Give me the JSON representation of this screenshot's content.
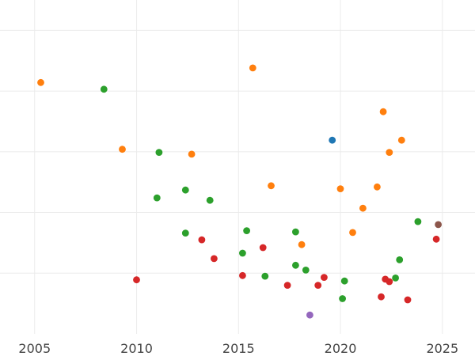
{
  "chart_data": {
    "type": "scatter",
    "title": "",
    "xlabel": "",
    "ylabel": "",
    "xlim": [
      2003.3,
      2026.6
    ],
    "ylim": [
      0,
      5.5
    ],
    "xticks": [
      2005,
      2010,
      2015,
      2020,
      2025
    ],
    "xtick_labels": [
      "2005",
      "2010",
      "2015",
      "2020",
      "2025"
    ],
    "yticks": [
      1,
      2,
      3,
      4,
      5
    ],
    "ytick_labels": [],
    "grid": true,
    "legend": "none",
    "series": [
      {
        "color": "#ff7f0e",
        "points": [
          [
            2005.3,
            4.14
          ],
          [
            2009.3,
            3.04
          ],
          [
            2012.7,
            2.96
          ],
          [
            2015.7,
            4.38
          ],
          [
            2016.6,
            2.44
          ],
          [
            2018.1,
            1.47
          ],
          [
            2020.0,
            2.39
          ],
          [
            2020.6,
            1.67
          ],
          [
            2021.1,
            2.07
          ],
          [
            2021.8,
            2.42
          ],
          [
            2022.1,
            3.66
          ],
          [
            2022.4,
            2.99
          ],
          [
            2023.0,
            3.19
          ]
        ]
      },
      {
        "color": "#2ca02c",
        "points": [
          [
            2008.4,
            4.03
          ],
          [
            2011.0,
            2.24
          ],
          [
            2011.1,
            2.99
          ],
          [
            2012.4,
            2.37
          ],
          [
            2012.4,
            1.66
          ],
          [
            2013.6,
            2.2
          ],
          [
            2015.2,
            1.33
          ],
          [
            2015.4,
            1.7
          ],
          [
            2016.3,
            0.95
          ],
          [
            2017.8,
            1.13
          ],
          [
            2017.8,
            1.68
          ],
          [
            2018.3,
            1.05
          ],
          [
            2020.1,
            0.58
          ],
          [
            2020.2,
            0.87
          ],
          [
            2022.7,
            0.92
          ],
          [
            2022.9,
            1.22
          ],
          [
            2023.8,
            1.85
          ]
        ]
      },
      {
        "color": "#d62728",
        "points": [
          [
            2010.0,
            0.89
          ],
          [
            2013.2,
            1.55
          ],
          [
            2013.8,
            1.24
          ],
          [
            2015.2,
            0.96
          ],
          [
            2016.2,
            1.42
          ],
          [
            2017.4,
            0.8
          ],
          [
            2018.9,
            0.8
          ],
          [
            2019.2,
            0.93
          ],
          [
            2022.0,
            0.61
          ],
          [
            2022.2,
            0.9
          ],
          [
            2022.4,
            0.86
          ],
          [
            2023.3,
            0.56
          ],
          [
            2024.7,
            1.56
          ]
        ]
      },
      {
        "color": "#1f77b4",
        "points": [
          [
            2019.6,
            3.19
          ]
        ]
      },
      {
        "color": "#9467bd",
        "points": [
          [
            2018.5,
            0.31
          ]
        ]
      },
      {
        "color": "#8c564b",
        "points": [
          [
            2024.8,
            1.8
          ]
        ]
      }
    ]
  }
}
